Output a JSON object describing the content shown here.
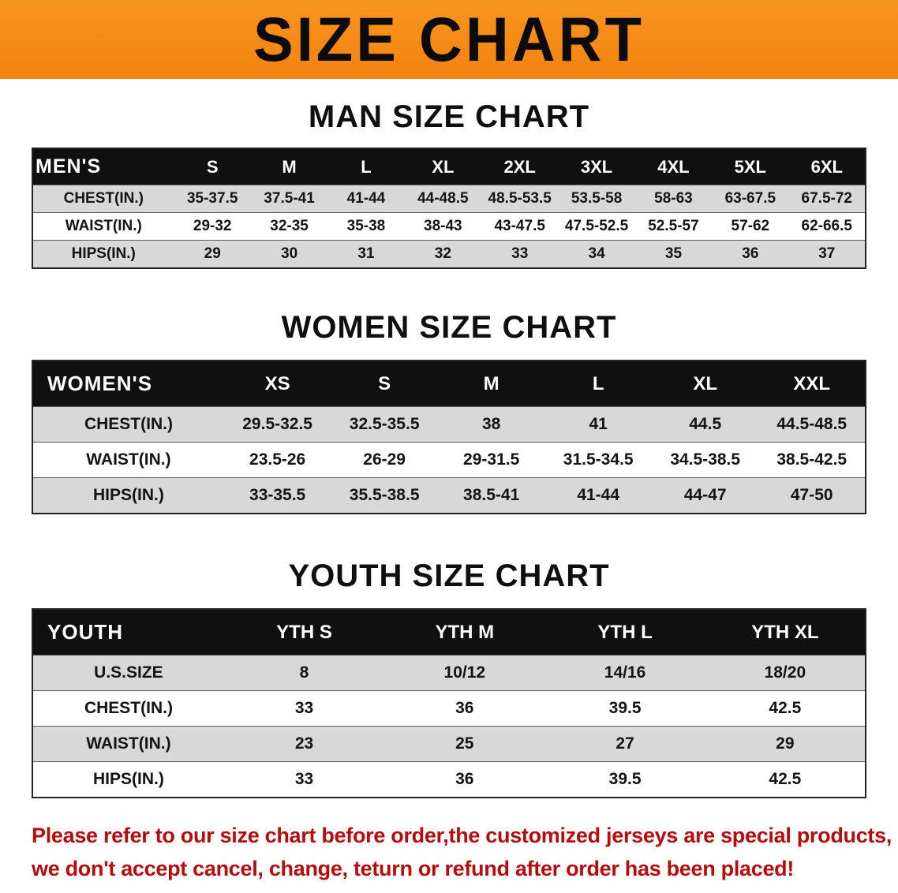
{
  "colors": {
    "banner_bg": "#f68a16",
    "table_header_bg": "#101010",
    "row_stripe": "#d8d8d8",
    "footer_text": "#b50d0d"
  },
  "banner": {
    "title": "SIZE CHART"
  },
  "sections": [
    {
      "heading": "MAN SIZE CHART",
      "table": {
        "header": [
          "MEN'S",
          "S",
          "M",
          "L",
          "XL",
          "2XL",
          "3XL",
          "4XL",
          "5XL",
          "6XL"
        ],
        "rows": [
          {
            "label": "CHEST(IN.)",
            "values": [
              "35-37.5",
              "37.5-41",
              "41-44",
              "44-48.5",
              "48.5-53.5",
              "53.5-58",
              "58-63",
              "63-67.5",
              "67.5-72"
            ]
          },
          {
            "label": "WAIST(IN.)",
            "values": [
              "29-32",
              "32-35",
              "35-38",
              "38-43",
              "43-47.5",
              "47.5-52.5",
              "52.5-57",
              "57-62",
              "62-66.5"
            ]
          },
          {
            "label": "HIPS(IN.)",
            "values": [
              "29",
              "30",
              "31",
              "32",
              "33",
              "34",
              "35",
              "36",
              "37"
            ]
          }
        ]
      }
    },
    {
      "heading": "WOMEN SIZE CHART",
      "table": {
        "header": [
          "WOMEN'S",
          "XS",
          "S",
          "M",
          "L",
          "XL",
          "XXL"
        ],
        "rows": [
          {
            "label": "CHEST(IN.)",
            "values": [
              "29.5-32.5",
              "32.5-35.5",
              "38",
              "41",
              "44.5",
              "44.5-48.5"
            ]
          },
          {
            "label": "WAIST(IN.)",
            "values": [
              "23.5-26",
              "26-29",
              "29-31.5",
              "31.5-34.5",
              "34.5-38.5",
              "38.5-42.5"
            ]
          },
          {
            "label": "HIPS(IN.)",
            "values": [
              "33-35.5",
              "35.5-38.5",
              "38.5-41",
              "41-44",
              "44-47",
              "47-50"
            ]
          }
        ]
      }
    },
    {
      "heading": "YOUTH SIZE CHART",
      "table": {
        "header": [
          "YOUTH",
          "YTH S",
          "YTH M",
          "YTH L",
          "YTH XL"
        ],
        "rows": [
          {
            "label": "U.S.SIZE",
            "values": [
              "8",
              "10/12",
              "14/16",
              "18/20"
            ]
          },
          {
            "label": "CHEST(IN.)",
            "values": [
              "33",
              "36",
              "39.5",
              "42.5"
            ]
          },
          {
            "label": "WAIST(IN.)",
            "values": [
              "23",
              "25",
              "27",
              "29"
            ]
          },
          {
            "label": "HIPS(IN.)",
            "values": [
              "33",
              "36",
              "39.5",
              "42.5"
            ]
          }
        ]
      }
    }
  ],
  "footer": {
    "line1": "Please refer to our size chart before order,the customized jerseys are special products,",
    "line2": "we don't accept cancel, change, teturn or refund after order has been placed!"
  }
}
